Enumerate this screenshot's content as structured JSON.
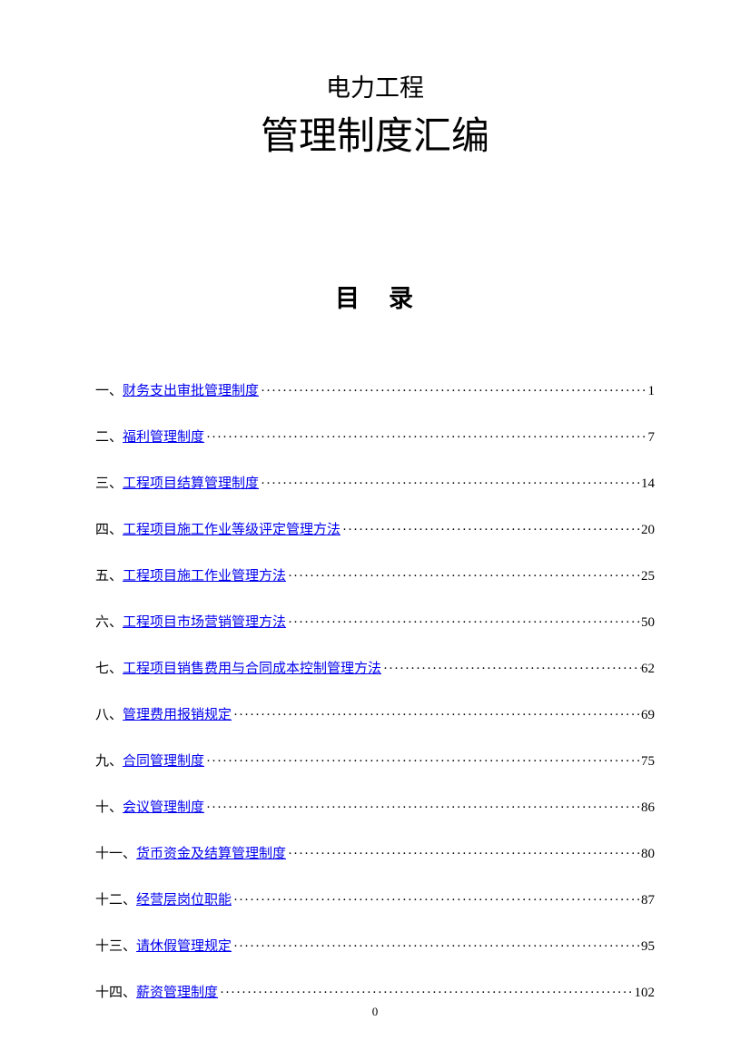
{
  "title": {
    "subtitle": "电力工程",
    "main": "管理制度汇编"
  },
  "toc_heading": "目录",
  "toc_items": [
    {
      "prefix": "一、",
      "title": "财务支出审批管理制度",
      "page": "1"
    },
    {
      "prefix": "二、",
      "title": "福利管理制度",
      "page": "7"
    },
    {
      "prefix": "三、",
      "title": "工程项目结算管理制度",
      "page": "14"
    },
    {
      "prefix": "四、",
      "title": "工程项目施工作业等级评定管理方法",
      "page": "20"
    },
    {
      "prefix": "五、",
      "title": "工程项目施工作业管理方法",
      "page": "25"
    },
    {
      "prefix": "六、",
      "title": "工程项目市场营销管理方法",
      "page": "50"
    },
    {
      "prefix": "七、",
      "title": "工程项目销售费用与合同成本控制管理方法",
      "page": "62"
    },
    {
      "prefix": "八、",
      "title": "管理费用报销规定",
      "page": "69"
    },
    {
      "prefix": "九、",
      "title": "合同管理制度",
      "page": "75"
    },
    {
      "prefix": "十、",
      "title": "会议管理制度",
      "page": "86"
    },
    {
      "prefix": "十一、",
      "title": "货币资金及结算管理制度",
      "page": "80"
    },
    {
      "prefix": "十二、",
      "title": "经营层岗位职能",
      "page": "87"
    },
    {
      "prefix": "十三、",
      "title": "请休假管理规定",
      "page": "95"
    },
    {
      "prefix": "十四、",
      "title": "薪资管理制度",
      "page": "102"
    }
  ],
  "page_number": "0",
  "colors": {
    "text": "#000000",
    "link": "#0000ee",
    "background": "#ffffff"
  },
  "typography": {
    "subtitle_fontsize": 27,
    "main_title_fontsize": 42,
    "toc_heading_fontsize": 27,
    "toc_item_fontsize": 15,
    "page_number_fontsize": 13,
    "font_family": "SimSun"
  }
}
